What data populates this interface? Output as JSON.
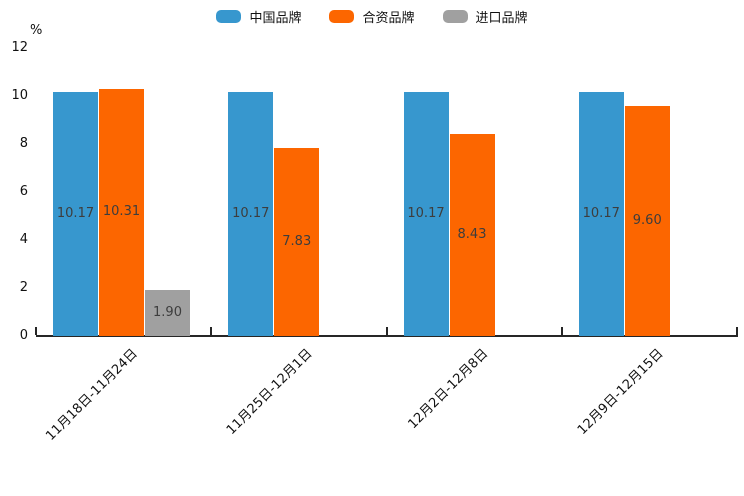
{
  "chart_data": {
    "type": "bar",
    "categories": [
      "11月18日-11月24日",
      "11月25日-12月1日",
      "12月2日-12月8日",
      "12月9日-12月15日"
    ],
    "series": [
      {
        "name": "中国品牌",
        "color": "#3797ce",
        "values": [
          10.17,
          10.17,
          10.17,
          10.17
        ]
      },
      {
        "name": "合资品牌",
        "color": "#fc6600",
        "values": [
          10.31,
          7.83,
          8.43,
          9.6
        ]
      },
      {
        "name": "进口品牌",
        "color": "#a0a0a0",
        "values": [
          1.9,
          null,
          null,
          null
        ]
      }
    ],
    "title": "",
    "xlabel": "",
    "ylabel": "%",
    "yticks": [
      0,
      2,
      4,
      6,
      8,
      10,
      12
    ],
    "ylim": [
      0,
      12
    ],
    "grid": false,
    "legend_position": "top-center",
    "value_labels": {
      "show": true,
      "decimals": 2,
      "position": "inside-center"
    }
  },
  "colors": {
    "background": "#ffffff",
    "axis": "#262626",
    "tick_text": "#111111",
    "value_label_text": "#3d3d3d"
  }
}
